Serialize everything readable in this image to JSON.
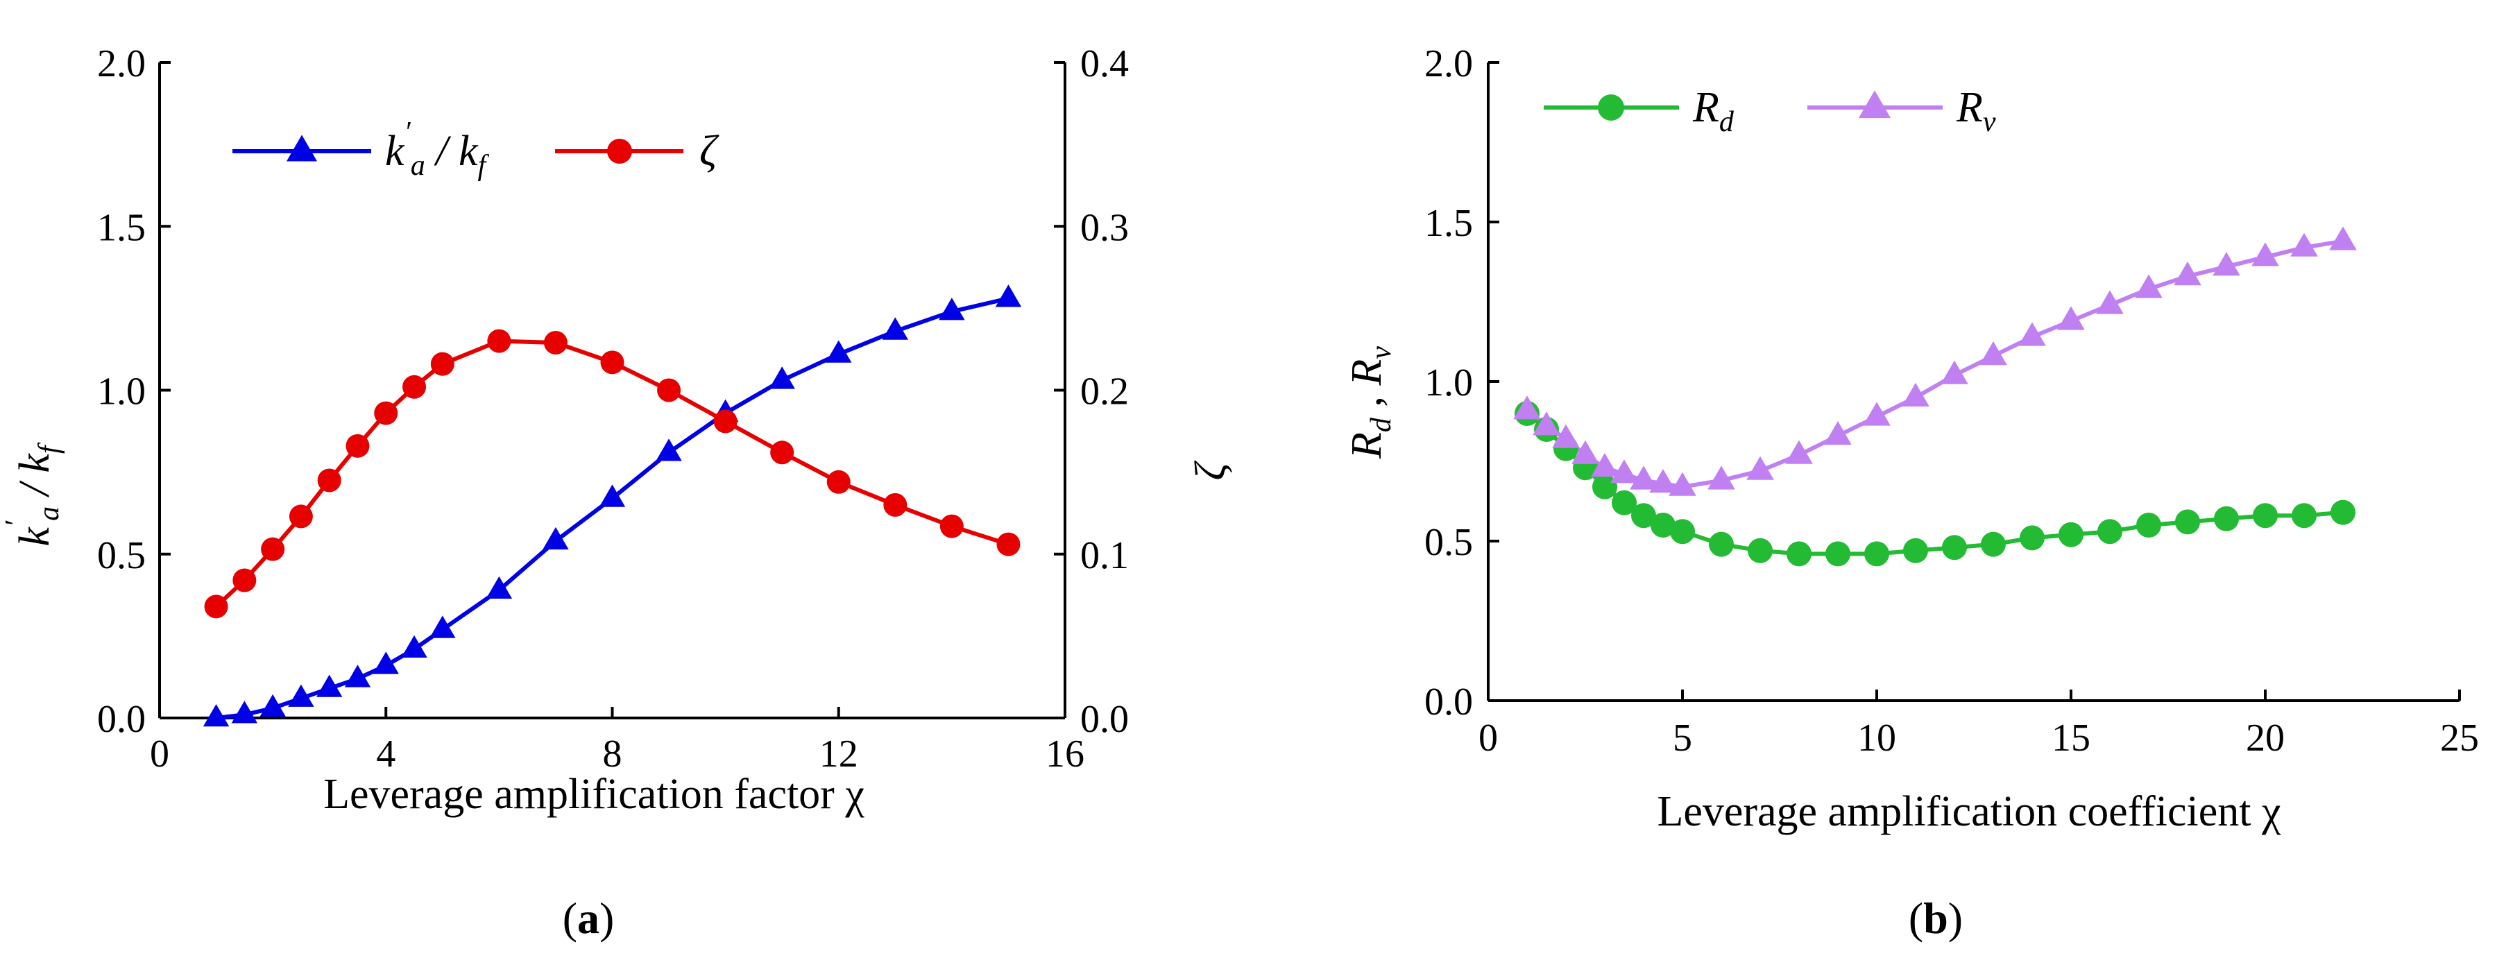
{
  "chart_data": [
    {
      "panel": "a",
      "panel_label": "a",
      "type": "line",
      "xlabel": "Leverage amplification factor χ",
      "ylabel_left": "k′a / kf",
      "ylabel_right": "ζ",
      "xlim": [
        0,
        16
      ],
      "ylim_left": [
        0,
        2.0
      ],
      "ylim_right": [
        0,
        0.4
      ],
      "xticks": [
        "0",
        "4",
        "8",
        "12",
        "16"
      ],
      "yticks_left": [
        "0.0",
        "0.5",
        "1.0",
        "1.5",
        "2.0"
      ],
      "yticks_right": [
        "0.0",
        "0.1",
        "0.2",
        "0.3",
        "0.4"
      ],
      "legend": {
        "position": "top-left",
        "entries": [
          "k′a / kf",
          "ζ"
        ]
      },
      "series": [
        {
          "name": "k′a / kf",
          "axis": "left",
          "color": "#0000e6",
          "marker": "triangle",
          "x": [
            1,
            1.5,
            2,
            2.5,
            3,
            3.5,
            4,
            4.5,
            5,
            6,
            7,
            8,
            9,
            10,
            11,
            12,
            13,
            14,
            15
          ],
          "values": [
            0.0,
            0.01,
            0.03,
            0.06,
            0.09,
            0.12,
            0.16,
            0.21,
            0.27,
            0.39,
            0.54,
            0.67,
            0.81,
            0.93,
            1.03,
            1.11,
            1.18,
            1.24,
            1.28
          ]
        },
        {
          "name": "ζ",
          "axis": "right",
          "color": "#e60000",
          "marker": "circle",
          "x": [
            1,
            1.5,
            2,
            2.5,
            3,
            3.5,
            4,
            4.5,
            5,
            6,
            7,
            8,
            9,
            10,
            11,
            12,
            13,
            14,
            15
          ],
          "values": [
            0.068,
            0.084,
            0.103,
            0.123,
            0.145,
            0.166,
            0.186,
            0.202,
            0.216,
            0.23,
            0.229,
            0.217,
            0.2,
            0.181,
            0.162,
            0.144,
            0.13,
            0.117,
            0.106
          ]
        }
      ]
    },
    {
      "panel": "b",
      "panel_label": "b",
      "type": "line",
      "xlabel": "Leverage amplification coefficient χ",
      "ylabel": "Rd , Rv",
      "xlim": [
        0,
        25
      ],
      "ylim": [
        0,
        2.0
      ],
      "xticks": [
        "0",
        "5",
        "10",
        "15",
        "20",
        "25"
      ],
      "yticks": [
        "0.0",
        "0.5",
        "1.0",
        "1.5",
        "2.0"
      ],
      "legend": {
        "position": "top-left",
        "entries": [
          "Rd",
          "Rv"
        ]
      },
      "series": [
        {
          "name": "Rd",
          "color": "#22bb33",
          "marker": "circle",
          "x": [
            1,
            1.5,
            2,
            2.5,
            3,
            3.5,
            4,
            4.5,
            5,
            6,
            7,
            8,
            9,
            10,
            11,
            12,
            13,
            14,
            15,
            16,
            17,
            18,
            19,
            20,
            21,
            22
          ],
          "values": [
            0.9,
            0.85,
            0.79,
            0.73,
            0.67,
            0.62,
            0.58,
            0.55,
            0.53,
            0.49,
            0.47,
            0.46,
            0.46,
            0.46,
            0.47,
            0.48,
            0.49,
            0.51,
            0.52,
            0.53,
            0.55,
            0.56,
            0.57,
            0.58,
            0.58,
            0.59
          ]
        },
        {
          "name": "Rv",
          "color": "#c080f2",
          "marker": "triangle",
          "x": [
            1,
            1.5,
            2,
            2.5,
            3,
            3.5,
            4,
            4.5,
            5,
            6,
            7,
            8,
            9,
            10,
            11,
            12,
            13,
            14,
            15,
            16,
            17,
            18,
            19,
            20,
            21,
            22
          ],
          "values": [
            0.91,
            0.86,
            0.82,
            0.77,
            0.73,
            0.71,
            0.69,
            0.68,
            0.67,
            0.69,
            0.72,
            0.77,
            0.83,
            0.89,
            0.95,
            1.02,
            1.08,
            1.14,
            1.19,
            1.24,
            1.29,
            1.33,
            1.36,
            1.39,
            1.42,
            1.44
          ]
        }
      ]
    }
  ]
}
